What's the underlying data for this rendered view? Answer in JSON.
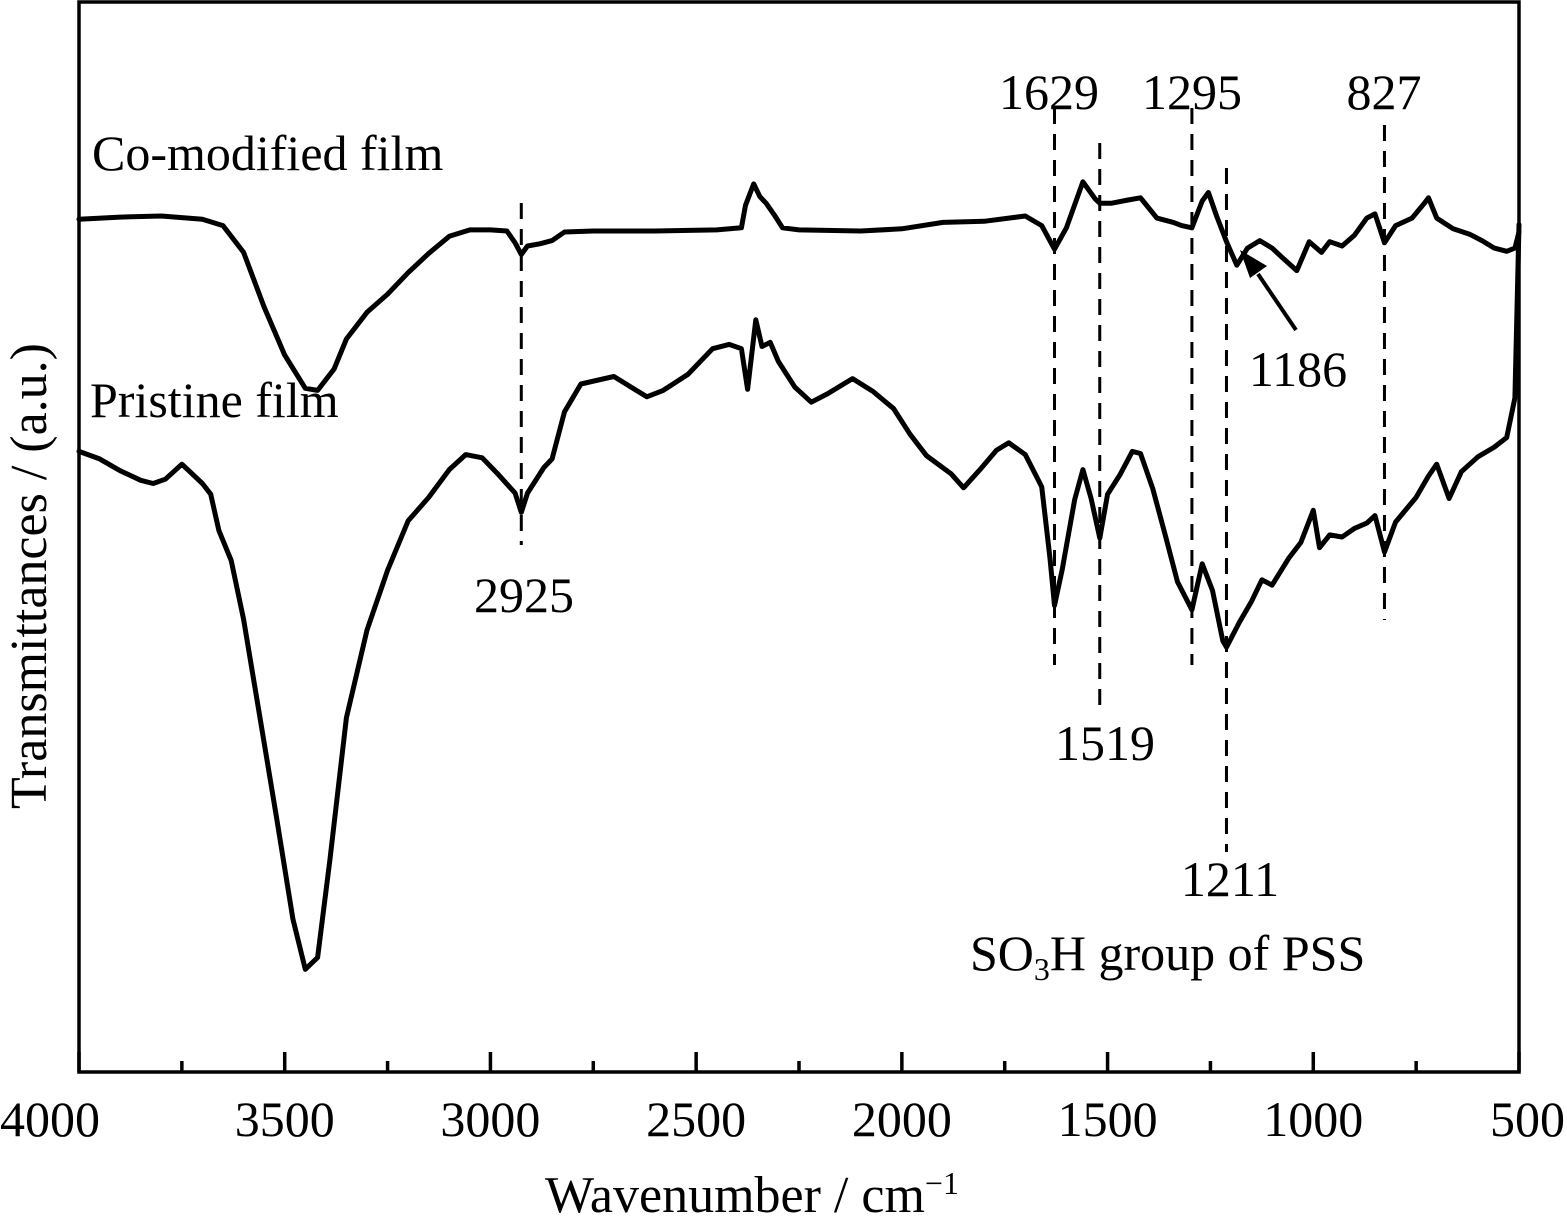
{
  "chart_data": {
    "type": "line",
    "xlabel": "Wavenumber / cm",
    "xlabel_sup": "−1",
    "ylabel": "Transmittances / (a.u.)",
    "xlim": [
      4000,
      500
    ],
    "x_reversed": true,
    "xticks": [
      "4000",
      "3500",
      "3000",
      "2500",
      "2000",
      "1500",
      "1000",
      "500"
    ],
    "y_scale": "arbitrary units, vertically offset traces, no y tick labels",
    "grid": false,
    "series": [
      {
        "name": "Co-modified film",
        "color": "#000000",
        "points": [
          [
            4000,
            0.797
          ],
          [
            3900,
            0.799
          ],
          [
            3800,
            0.8
          ],
          [
            3700,
            0.797
          ],
          [
            3650,
            0.791
          ],
          [
            3600,
            0.766
          ],
          [
            3550,
            0.715
          ],
          [
            3500,
            0.67
          ],
          [
            3450,
            0.639
          ],
          [
            3420,
            0.637
          ],
          [
            3380,
            0.657
          ],
          [
            3350,
            0.685
          ],
          [
            3300,
            0.71
          ],
          [
            3250,
            0.727
          ],
          [
            3200,
            0.747
          ],
          [
            3150,
            0.765
          ],
          [
            3100,
            0.781
          ],
          [
            3050,
            0.787
          ],
          [
            3000,
            0.787
          ],
          [
            2960,
            0.786
          ],
          [
            2940,
            0.775
          ],
          [
            2925,
            0.764
          ],
          [
            2910,
            0.772
          ],
          [
            2880,
            0.774
          ],
          [
            2850,
            0.777
          ],
          [
            2820,
            0.785
          ],
          [
            2750,
            0.786
          ],
          [
            2600,
            0.786
          ],
          [
            2450,
            0.787
          ],
          [
            2390,
            0.789
          ],
          [
            2380,
            0.81
          ],
          [
            2360,
            0.83
          ],
          [
            2345,
            0.818
          ],
          [
            2330,
            0.812
          ],
          [
            2310,
            0.801
          ],
          [
            2290,
            0.789
          ],
          [
            2250,
            0.787
          ],
          [
            2100,
            0.786
          ],
          [
            2000,
            0.788
          ],
          [
            1900,
            0.794
          ],
          [
            1800,
            0.795
          ],
          [
            1700,
            0.8
          ],
          [
            1660,
            0.791
          ],
          [
            1629,
            0.769
          ],
          [
            1600,
            0.789
          ],
          [
            1560,
            0.832
          ],
          [
            1530,
            0.816
          ],
          [
            1519,
            0.812
          ],
          [
            1490,
            0.812
          ],
          [
            1450,
            0.815
          ],
          [
            1420,
            0.817
          ],
          [
            1380,
            0.798
          ],
          [
            1340,
            0.794
          ],
          [
            1320,
            0.791
          ],
          [
            1295,
            0.789
          ],
          [
            1270,
            0.814
          ],
          [
            1255,
            0.822
          ],
          [
            1235,
            0.8
          ],
          [
            1211,
            0.776
          ],
          [
            1186,
            0.754
          ],
          [
            1160,
            0.77
          ],
          [
            1130,
            0.777
          ],
          [
            1100,
            0.77
          ],
          [
            1075,
            0.761
          ],
          [
            1040,
            0.749
          ],
          [
            1010,
            0.776
          ],
          [
            980,
            0.766
          ],
          [
            960,
            0.776
          ],
          [
            930,
            0.772
          ],
          [
            900,
            0.782
          ],
          [
            870,
            0.798
          ],
          [
            850,
            0.802
          ],
          [
            827,
            0.775
          ],
          [
            800,
            0.791
          ],
          [
            760,
            0.798
          ],
          [
            730,
            0.812
          ],
          [
            720,
            0.817
          ],
          [
            700,
            0.798
          ],
          [
            660,
            0.788
          ],
          [
            620,
            0.783
          ],
          [
            590,
            0.777
          ],
          [
            560,
            0.77
          ],
          [
            530,
            0.767
          ],
          [
            510,
            0.77
          ],
          [
            500,
            0.785
          ]
        ]
      },
      {
        "name": "Pristine film",
        "color": "#000000",
        "points": [
          [
            4000,
            0.58
          ],
          [
            3950,
            0.573
          ],
          [
            3900,
            0.562
          ],
          [
            3850,
            0.553
          ],
          [
            3820,
            0.55
          ],
          [
            3790,
            0.554
          ],
          [
            3750,
            0.568
          ],
          [
            3700,
            0.55
          ],
          [
            3680,
            0.54
          ],
          [
            3660,
            0.506
          ],
          [
            3630,
            0.478
          ],
          [
            3600,
            0.423
          ],
          [
            3560,
            0.331
          ],
          [
            3520,
            0.238
          ],
          [
            3480,
            0.143
          ],
          [
            3450,
            0.096
          ],
          [
            3420,
            0.107
          ],
          [
            3390,
            0.199
          ],
          [
            3350,
            0.331
          ],
          [
            3300,
            0.413
          ],
          [
            3250,
            0.469
          ],
          [
            3200,
            0.515
          ],
          [
            3150,
            0.537
          ],
          [
            3100,
            0.563
          ],
          [
            3060,
            0.577
          ],
          [
            3020,
            0.574
          ],
          [
            2980,
            0.558
          ],
          [
            2940,
            0.541
          ],
          [
            2925,
            0.523
          ],
          [
            2910,
            0.541
          ],
          [
            2870,
            0.565
          ],
          [
            2850,
            0.573
          ],
          [
            2820,
            0.617
          ],
          [
            2780,
            0.643
          ],
          [
            2700,
            0.65
          ],
          [
            2620,
            0.631
          ],
          [
            2580,
            0.637
          ],
          [
            2520,
            0.652
          ],
          [
            2460,
            0.676
          ],
          [
            2420,
            0.68
          ],
          [
            2390,
            0.676
          ],
          [
            2375,
            0.638
          ],
          [
            2355,
            0.703
          ],
          [
            2340,
            0.678
          ],
          [
            2320,
            0.682
          ],
          [
            2300,
            0.664
          ],
          [
            2260,
            0.64
          ],
          [
            2220,
            0.626
          ],
          [
            2180,
            0.634
          ],
          [
            2120,
            0.648
          ],
          [
            2070,
            0.636
          ],
          [
            2020,
            0.62
          ],
          [
            1980,
            0.596
          ],
          [
            1940,
            0.576
          ],
          [
            1880,
            0.559
          ],
          [
            1850,
            0.546
          ],
          [
            1810,
            0.563
          ],
          [
            1770,
            0.581
          ],
          [
            1740,
            0.588
          ],
          [
            1700,
            0.577
          ],
          [
            1660,
            0.547
          ],
          [
            1640,
            0.48
          ],
          [
            1629,
            0.436
          ],
          [
            1610,
            0.47
          ],
          [
            1580,
            0.535
          ],
          [
            1560,
            0.563
          ],
          [
            1540,
            0.536
          ],
          [
            1519,
            0.499
          ],
          [
            1500,
            0.54
          ],
          [
            1470,
            0.558
          ],
          [
            1440,
            0.58
          ],
          [
            1420,
            0.578
          ],
          [
            1390,
            0.545
          ],
          [
            1360,
            0.502
          ],
          [
            1330,
            0.458
          ],
          [
            1295,
            0.432
          ],
          [
            1270,
            0.475
          ],
          [
            1245,
            0.45
          ],
          [
            1220,
            0.403
          ],
          [
            1211,
            0.397
          ],
          [
            1180,
            0.42
          ],
          [
            1150,
            0.44
          ],
          [
            1125,
            0.46
          ],
          [
            1100,
            0.455
          ],
          [
            1060,
            0.48
          ],
          [
            1030,
            0.495
          ],
          [
            1000,
            0.525
          ],
          [
            985,
            0.49
          ],
          [
            960,
            0.502
          ],
          [
            930,
            0.5
          ],
          [
            900,
            0.508
          ],
          [
            870,
            0.513
          ],
          [
            850,
            0.52
          ],
          [
            827,
            0.486
          ],
          [
            800,
            0.514
          ],
          [
            750,
            0.537
          ],
          [
            720,
            0.557
          ],
          [
            700,
            0.568
          ],
          [
            670,
            0.536
          ],
          [
            640,
            0.561
          ],
          [
            600,
            0.575
          ],
          [
            560,
            0.584
          ],
          [
            530,
            0.593
          ],
          [
            510,
            0.63
          ],
          [
            500,
            0.792
          ]
        ]
      }
    ],
    "peak_markers": [
      {
        "label": "2925",
        "x": 2925
      },
      {
        "label": "1629",
        "x": 1629
      },
      {
        "label": "1519",
        "x": 1519
      },
      {
        "label": "1295",
        "x": 1295
      },
      {
        "label": "1211",
        "x": 1211
      },
      {
        "label": "827",
        "x": 827
      }
    ],
    "arrow_annotation": {
      "label": "1186",
      "x": 1186
    },
    "group_annotation": {
      "text_before": "SO",
      "subscript": "3",
      "text_after": "H group of PSS"
    }
  }
}
